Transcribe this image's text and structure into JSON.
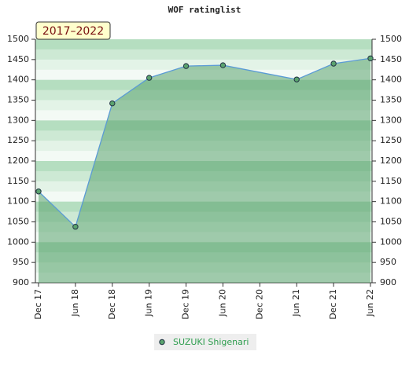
{
  "chart_data": {
    "type": "line",
    "title": "WOF ratinglist",
    "period_label": "2017–2022",
    "categories": [
      "Dec 17",
      "Jun 18",
      "Dec 18",
      "Jun 19",
      "Dec 19",
      "Jun 20",
      "Dec 20",
      "Jun 21",
      "Dec 21",
      "Jun 22"
    ],
    "series": [
      {
        "name": "SUZUKI Shigenari",
        "color": "#5aa36e",
        "line_color": "#5b9bd5",
        "x": [
          "Dec 17",
          "Jun 18",
          "Dec 18",
          "Jun 19",
          "Dec 19",
          "Jun 20",
          "Jun 21",
          "Dec 21",
          "Jun 22"
        ],
        "values": [
          1125,
          1038,
          1342,
          1405,
          1434,
          1436,
          1401,
          1440,
          1453
        ]
      }
    ],
    "ylim": [
      900,
      1500
    ],
    "yticks": [
      900,
      950,
      1000,
      1050,
      1100,
      1150,
      1200,
      1250,
      1300,
      1350,
      1400,
      1450,
      1500
    ],
    "right_axis": true,
    "legend": "bottom"
  }
}
